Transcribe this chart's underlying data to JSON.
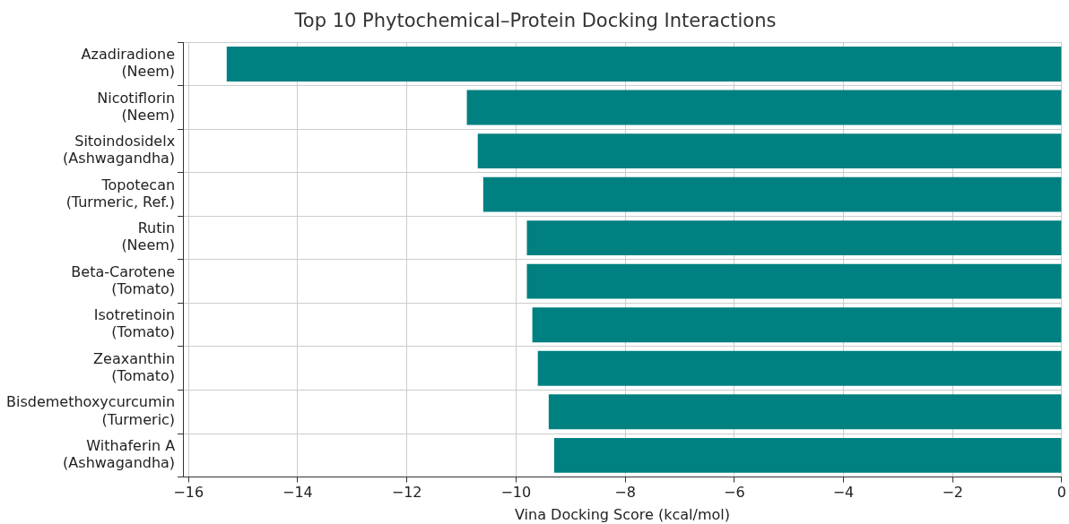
{
  "chart_data": {
    "type": "bar",
    "orientation": "horizontal",
    "title": "Top 10 Phytochemical–Protein Docking Interactions",
    "xlabel": "Vina Docking Score (kcal/mol)",
    "categories": [
      "Azadiradione\n(Neem)",
      "Nicotiflorin\n(Neem)",
      "Sitoindosidelx\n(Ashwagandha)",
      "Topotecan\n(Turmeric, Ref.)",
      "Rutin\n(Neem)",
      "Beta-Carotene\n(Tomato)",
      "Isotretinoin\n(Tomato)",
      "Zeaxanthin\n(Tomato)",
      "Bisdemethoxycurcumin\n(Turmeric)",
      "Withaferin A\n(Ashwagandha)"
    ],
    "values": [
      -15.3,
      -10.9,
      -10.7,
      -10.6,
      -9.8,
      -9.8,
      -9.7,
      -9.6,
      -9.4,
      -9.3
    ],
    "color": "#008080",
    "xlim": [
      -16.1,
      0
    ],
    "xticks": [
      -16,
      -14,
      -12,
      -10,
      -8,
      -6,
      -4,
      -2,
      0
    ],
    "grid": true
  }
}
